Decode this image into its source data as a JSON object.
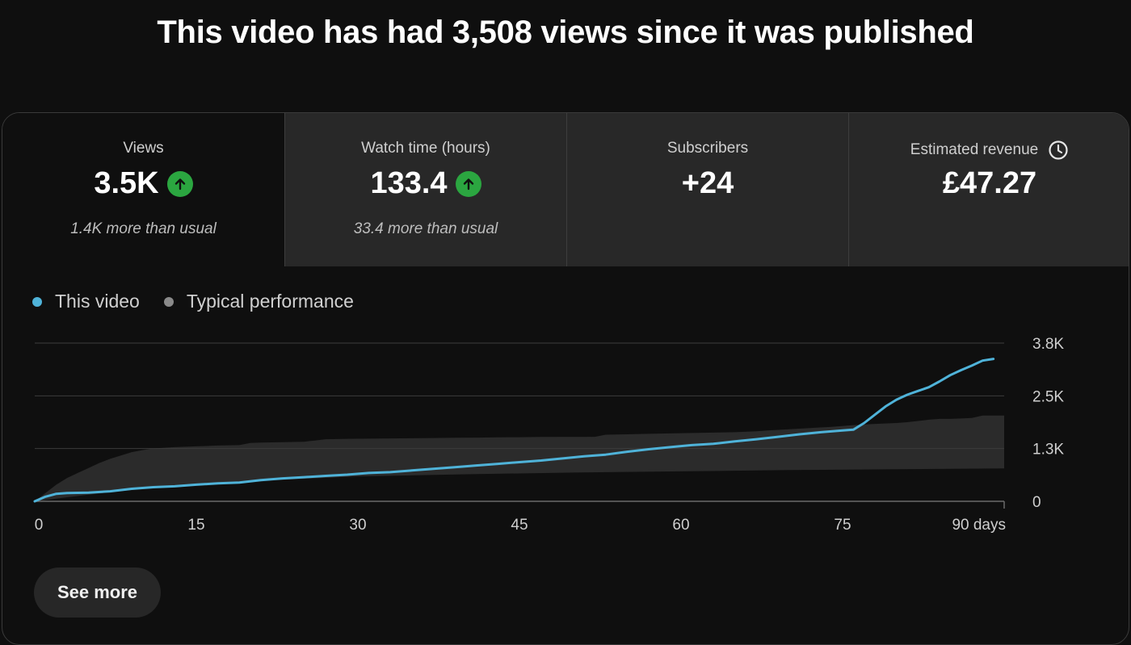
{
  "page": {
    "title": "This video has had 3,508 views since it was published"
  },
  "tabs": [
    {
      "label": "Views",
      "value": "3.5K",
      "trend": "up",
      "note": "1.4K more than usual"
    },
    {
      "label": "Watch time (hours)",
      "value": "133.4",
      "trend": "up",
      "note": "33.4 more than usual"
    },
    {
      "label": "Subscribers",
      "value": "+24",
      "trend": "",
      "note": ""
    },
    {
      "label": "Estimated revenue",
      "value": "£47.27",
      "trend": "",
      "note": "",
      "icon": "clock-icon"
    }
  ],
  "actions": {
    "see_more": "See more"
  },
  "colors": {
    "this_video": "#4fb3d9",
    "typical": "#8a8a8a",
    "band": "#2b2b2b",
    "up": "#2ba640"
  },
  "chart_data": {
    "type": "line",
    "legend": [
      {
        "name": "This video",
        "color": "#4fb3d9"
      },
      {
        "name": "Typical performance",
        "color": "#8a8a8a"
      }
    ],
    "xticks": [
      {
        "value": 0,
        "label": "0"
      },
      {
        "value": 15,
        "label": "15"
      },
      {
        "value": 30,
        "label": "30"
      },
      {
        "value": 45,
        "label": "45"
      },
      {
        "value": 60,
        "label": "60"
      },
      {
        "value": 75,
        "label": "75"
      },
      {
        "value": 90,
        "label": "90 days"
      }
    ],
    "yticks": [
      {
        "value": 0,
        "label": "0"
      },
      {
        "value": 1267,
        "label": "1.3K"
      },
      {
        "value": 2533,
        "label": "2.5K"
      },
      {
        "value": 3800,
        "label": "3.8K"
      }
    ],
    "xlim": [
      0,
      90
    ],
    "ylim": [
      0,
      3800
    ],
    "series": [
      {
        "name": "This video",
        "x": [
          0,
          1,
          2,
          3,
          5,
          7,
          9,
          11,
          13,
          15,
          17,
          19,
          21,
          23,
          25,
          27,
          29,
          31,
          33,
          35,
          37,
          39,
          41,
          43,
          45,
          47,
          49,
          51,
          53,
          55,
          57,
          59,
          61,
          63,
          65,
          67,
          69,
          71,
          73,
          75,
          76,
          77,
          78,
          79,
          80,
          81,
          82,
          83,
          84,
          85,
          86,
          87,
          88,
          89
        ],
        "y": [
          0,
          110,
          180,
          200,
          210,
          240,
          300,
          340,
          360,
          400,
          430,
          450,
          510,
          550,
          580,
          610,
          640,
          680,
          700,
          740,
          780,
          820,
          860,
          900,
          940,
          980,
          1030,
          1080,
          1120,
          1190,
          1250,
          1300,
          1350,
          1380,
          1440,
          1490,
          1550,
          1610,
          1660,
          1700,
          1720,
          1880,
          2080,
          2280,
          2440,
          2560,
          2650,
          2740,
          2880,
          3030,
          3150,
          3260,
          3380,
          3420
        ]
      },
      {
        "name": "Typical performance upper",
        "x": [
          0,
          1,
          2,
          3,
          4,
          5,
          6,
          7,
          8,
          9,
          10,
          11,
          13,
          15,
          17,
          19,
          20,
          21,
          23,
          25,
          26,
          27,
          29,
          31,
          33,
          35,
          37,
          39,
          41,
          43,
          45,
          47,
          52,
          53,
          55,
          57,
          59,
          61,
          63,
          65,
          67,
          68,
          70,
          72,
          74,
          76,
          78,
          80,
          81,
          82,
          83,
          84,
          85,
          86,
          87,
          88,
          89,
          90
        ],
        "y": [
          0,
          200,
          400,
          560,
          680,
          800,
          920,
          1020,
          1100,
          1180,
          1230,
          1270,
          1300,
          1320,
          1340,
          1350,
          1400,
          1410,
          1420,
          1430,
          1460,
          1490,
          1500,
          1505,
          1510,
          1515,
          1520,
          1525,
          1530,
          1535,
          1540,
          1545,
          1550,
          1600,
          1610,
          1620,
          1630,
          1640,
          1650,
          1660,
          1680,
          1700,
          1730,
          1760,
          1790,
          1830,
          1860,
          1880,
          1900,
          1930,
          1960,
          1980,
          1980,
          1990,
          2000,
          2060,
          2060,
          2060
        ]
      },
      {
        "name": "Typical performance lower",
        "x": [
          0,
          5,
          10,
          15,
          20,
          25,
          30,
          40,
          50,
          60,
          70,
          80,
          90
        ],
        "y": [
          0,
          160,
          300,
          400,
          480,
          540,
          600,
          650,
          690,
          720,
          750,
          770,
          790
        ]
      }
    ]
  }
}
